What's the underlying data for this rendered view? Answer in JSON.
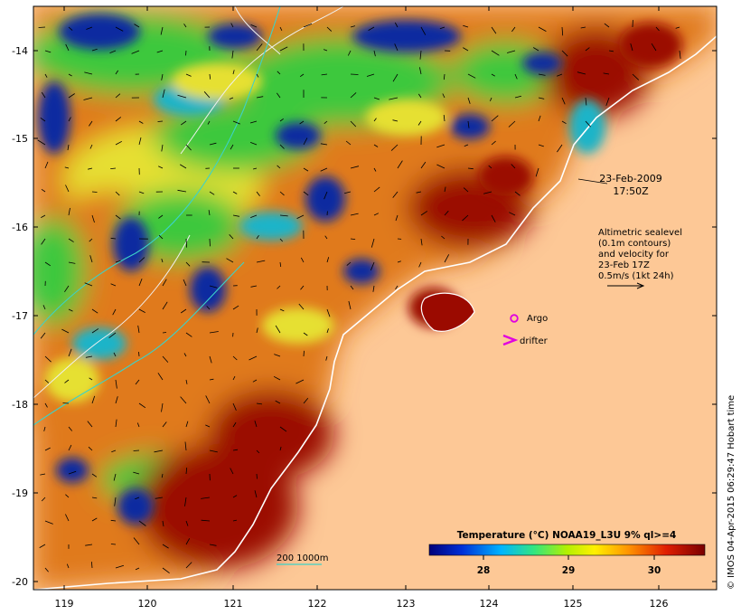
{
  "map": {
    "lon_ticks": [
      "119",
      "120",
      "121",
      "122",
      "123",
      "124",
      "125",
      "126"
    ],
    "lat_ticks": [
      "-14",
      "-15",
      "-16",
      "-17",
      "-18",
      "-19",
      "-20"
    ],
    "date_line1": "23-Feb-2009",
    "date_line2": "17:50Z",
    "altimetry_lines": [
      "Altimetric sealevel",
      "(0.1m contours)",
      "and velocity for",
      "23-Feb 17Z",
      "0.5m/s (1kt 24h)"
    ],
    "argo_label": "Argo",
    "drifter_label": "drifter",
    "bathy_label": "200  1000m",
    "colorbar_title": "Temperature (°C) NOAA19_L3U 9% ql>=4",
    "colorbar_ticks": [
      "28",
      "29",
      "30"
    ],
    "credit": "© IMOS 04-Apr-2015 06:29:47 Hobart time",
    "colors": {
      "land": "#fdc896",
      "hot": "#9b0a00",
      "orange": "#e07a1c",
      "yellow": "#e6e032",
      "green": "#3ec83c",
      "cyan": "#1ab4c8",
      "blue": "#0a2ca0",
      "argo_marker": "#e000e0",
      "bathy_line": "#3cd2c8"
    },
    "icons": [
      "argo-circle-icon",
      "drifter-arrow-icon"
    ]
  }
}
